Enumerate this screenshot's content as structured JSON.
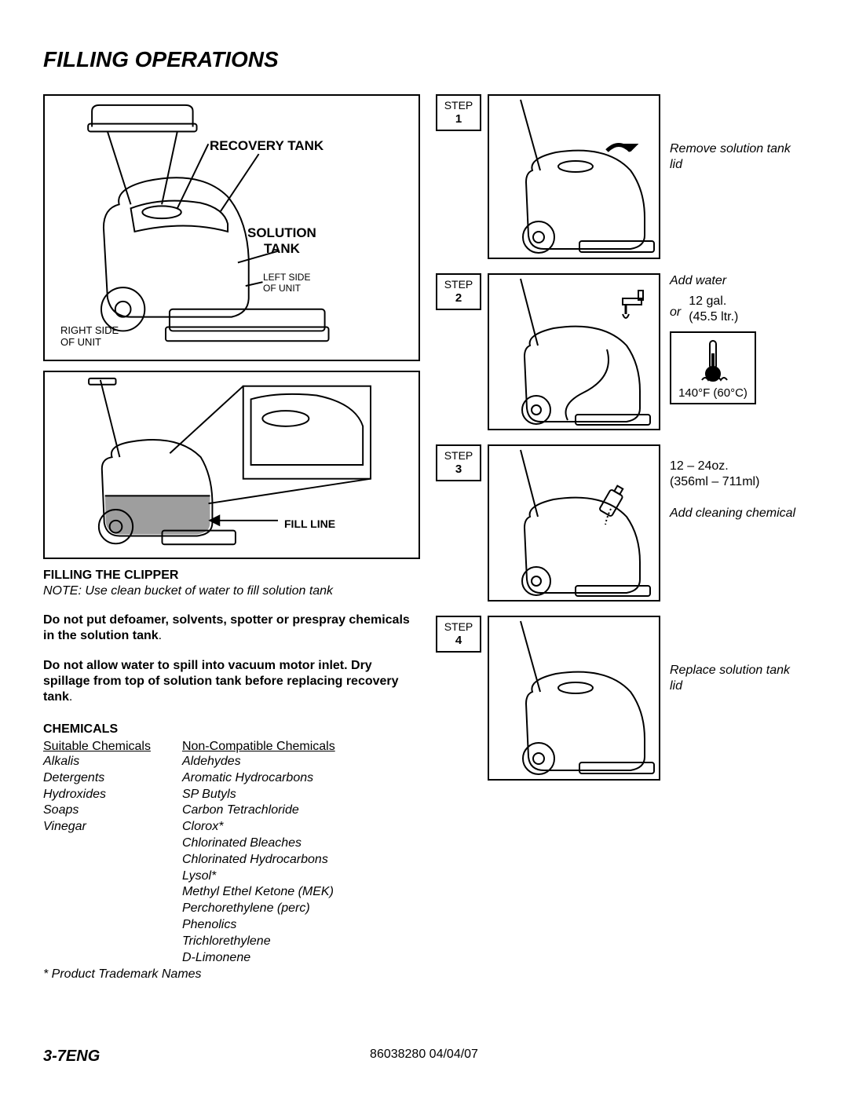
{
  "title": "FILLING OPERATIONS",
  "diagram1": {
    "recovery_tank": "RECOVERY TANK",
    "solution_tank_l1": "SOLUTION",
    "solution_tank_l2": "TANK",
    "left_side_l1": "LEFT SIDE",
    "left_side_l2": "OF UNIT",
    "right_side_l1": "RIGHT SIDE",
    "right_side_l2": "OF UNIT"
  },
  "diagram2": {
    "fill_line": "FILL LINE"
  },
  "filling": {
    "heading": "FILLING THE CLIPPER",
    "note": "NOTE: Use clean bucket of water to fill solution tank",
    "warn1": "Do not put defoamer, solvents, spotter or prespray chemicals in the solution tank",
    "warn2a": "Do not allow water to spill into vacuum motor inlet.  Dry spillage from top of solution tank before replacing recovery tank"
  },
  "chemicals": {
    "heading": "CHEMICALS",
    "suitable_h": "Suitable Chemicals",
    "noncompat_h": "Non-Compatible Chemicals",
    "suitable": [
      "Alkalis",
      "Detergents",
      "Hydroxides",
      "Soaps",
      "Vinegar"
    ],
    "noncompat": [
      "Aldehydes",
      "Aromatic Hydrocarbons",
      "SP Butyls",
      "Carbon Tetrachloride",
      "Clorox*",
      "Chlorinated Bleaches",
      "Chlorinated Hydrocarbons",
      "Lysol*",
      "Methyl Ethel Ketone  (MEK)",
      "Perchorethylene (perc)",
      "Phenolics",
      "Trichlorethylene",
      "D-Limonene"
    ],
    "footnote": "* Product Trademark Names"
  },
  "steps": {
    "word": "STEP",
    "s1": {
      "num": "1",
      "text": "Remove solution tank lid"
    },
    "s2": {
      "num": "2",
      "text1": "Add water",
      "amount": "12 gal.",
      "amount2": "(45.5 ltr.)",
      "or": "or",
      "temp": "140°F (60°C)"
    },
    "s3": {
      "num": "3",
      "amount": "12 – 24oz.",
      "amount2": "(356ml – 711ml)",
      "text": "Add cleaning chemical"
    },
    "s4": {
      "num": "4",
      "text": "Replace solution tank lid"
    }
  },
  "footer": {
    "left": "3-7ENG",
    "center": "86038280  04/04/07"
  },
  "colors": {
    "black": "#000000",
    "white": "#ffffff",
    "grey_fill": "#9e9e9e"
  }
}
